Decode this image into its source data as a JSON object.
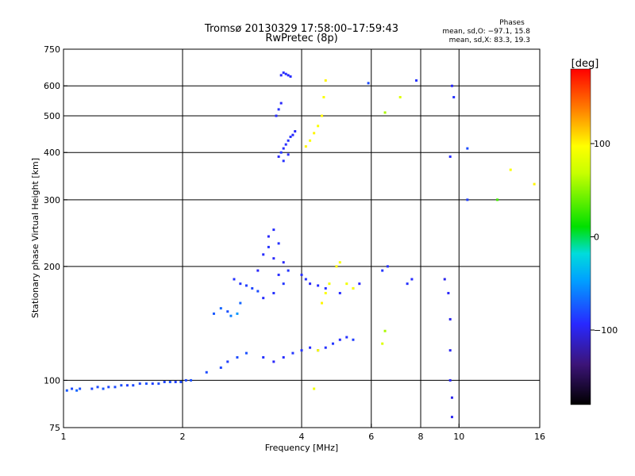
{
  "chart_data": {
    "type": "scatter",
    "title": "Tromsø 20130329 17:58:00–17:59:43",
    "subtitle": "RwPretec (8p)",
    "stats": {
      "heading": "Phases",
      "line1": "mean, sd,O: −97.1, 15.8",
      "line2": "mean, sd,X:  83.3, 19.3"
    },
    "xlabel": "Frequency [MHz]",
    "ylabel": "Stationary phase Virtual Height [km]",
    "x_scale": "log",
    "y_scale": "log",
    "xlim": [
      1,
      16
    ],
    "ylim": [
      75,
      750
    ],
    "x_ticks": [
      {
        "value": 1,
        "label": "1"
      },
      {
        "value": 2,
        "label": "2"
      },
      {
        "value": 4,
        "label": "4"
      },
      {
        "value": 6,
        "label": "6"
      },
      {
        "value": 8,
        "label": "8"
      },
      {
        "value": 10,
        "label": "10"
      },
      {
        "value": 16,
        "label": "16"
      }
    ],
    "y_ticks": [
      {
        "value": 75,
        "label": "75"
      },
      {
        "value": 100,
        "label": "100"
      },
      {
        "value": 200,
        "label": "200"
      },
      {
        "value": 300,
        "label": "300"
      },
      {
        "value": 400,
        "label": "400"
      },
      {
        "value": 500,
        "label": "500"
      },
      {
        "value": 600,
        "label": "600"
      },
      {
        "value": 750,
        "label": "750"
      }
    ],
    "grid_x": [
      2,
      4,
      6,
      8,
      10
    ],
    "grid_y": [
      100,
      200,
      300,
      400,
      500,
      600
    ],
    "colorbar": {
      "label": "[deg]",
      "range": [
        -180,
        180
      ],
      "ticks": [
        {
          "value": 100,
          "label": "100"
        },
        {
          "value": 0,
          "label": "0"
        },
        {
          "value": -100,
          "label": "−100"
        }
      ]
    },
    "series": [
      {
        "points": [
          [
            1.02,
            94,
            -75
          ],
          [
            1.05,
            95,
            -80
          ],
          [
            1.08,
            94,
            -70
          ],
          [
            1.1,
            95,
            -78
          ],
          [
            1.18,
            95,
            -82
          ],
          [
            1.22,
            96,
            -80
          ],
          [
            1.26,
            95,
            -76
          ],
          [
            1.3,
            96,
            -82
          ],
          [
            1.35,
            96,
            -80
          ],
          [
            1.4,
            97,
            -78
          ],
          [
            1.45,
            97,
            -85
          ],
          [
            1.5,
            97,
            -80
          ],
          [
            1.56,
            98,
            -82
          ],
          [
            1.62,
            98,
            -78
          ],
          [
            1.68,
            98,
            -84
          ],
          [
            1.74,
            98,
            -80
          ],
          [
            1.8,
            99,
            -82
          ],
          [
            1.86,
            99,
            -78
          ],
          [
            1.92,
            99,
            -85
          ],
          [
            1.98,
            99,
            -80
          ],
          [
            2.04,
            100,
            -82
          ],
          [
            2.1,
            100,
            -78
          ],
          [
            2.3,
            105,
            -80
          ],
          [
            2.5,
            108,
            -82
          ],
          [
            2.6,
            112,
            -85
          ],
          [
            2.75,
            115,
            -80
          ],
          [
            2.9,
            118,
            -78
          ],
          [
            2.4,
            150,
            -75
          ],
          [
            2.5,
            155,
            -70
          ],
          [
            2.6,
            152,
            -78
          ],
          [
            2.65,
            148,
            -60
          ],
          [
            2.75,
            150,
            -50
          ],
          [
            2.8,
            160,
            -70
          ],
          [
            2.7,
            185,
            -90
          ],
          [
            2.8,
            180,
            -88
          ],
          [
            2.9,
            178,
            -85
          ],
          [
            3.0,
            175,
            -82
          ],
          [
            3.1,
            172,
            -80
          ],
          [
            3.1,
            195,
            -95
          ],
          [
            3.2,
            215,
            -92
          ],
          [
            3.3,
            225,
            -90
          ],
          [
            3.4,
            210,
            -95
          ],
          [
            3.5,
            190,
            -92
          ],
          [
            3.6,
            180,
            -88
          ],
          [
            3.3,
            240,
            -95
          ],
          [
            3.4,
            250,
            -92
          ],
          [
            3.5,
            230,
            -90
          ],
          [
            3.6,
            205,
            -95
          ],
          [
            3.7,
            195,
            -88
          ],
          [
            3.4,
            170,
            -90
          ],
          [
            3.2,
            165,
            -92
          ],
          [
            3.2,
            115,
            -90
          ],
          [
            3.4,
            112,
            -95
          ],
          [
            3.6,
            115,
            -92
          ],
          [
            3.8,
            118,
            -88
          ],
          [
            4.0,
            120,
            -90
          ],
          [
            4.2,
            122,
            -92
          ],
          [
            4.4,
            120,
            -95
          ],
          [
            4.6,
            122,
            -90
          ],
          [
            4.8,
            125,
            -88
          ],
          [
            5.0,
            128,
            -92
          ],
          [
            5.2,
            130,
            -90
          ],
          [
            5.4,
            128,
            -85
          ],
          [
            3.5,
            390,
            -95
          ],
          [
            3.6,
            410,
            -92
          ],
          [
            3.7,
            430,
            -90
          ],
          [
            3.8,
            445,
            -95
          ],
          [
            3.55,
            400,
            -88
          ],
          [
            3.65,
            420,
            -92
          ],
          [
            3.75,
            440,
            -90
          ],
          [
            3.85,
            455,
            -95
          ],
          [
            3.6,
            380,
            -90
          ],
          [
            3.7,
            395,
            -92
          ],
          [
            3.45,
            500,
            -92
          ],
          [
            3.5,
            520,
            -90
          ],
          [
            3.55,
            540,
            -95
          ],
          [
            3.55,
            640,
            -95
          ],
          [
            3.6,
            650,
            -92
          ],
          [
            3.65,
            645,
            -90
          ],
          [
            3.7,
            640,
            -95
          ],
          [
            3.75,
            635,
            -92
          ],
          [
            4.0,
            190,
            -92
          ],
          [
            4.1,
            185,
            -90
          ],
          [
            4.2,
            180,
            -95
          ],
          [
            4.4,
            178,
            -92
          ],
          [
            4.6,
            175,
            -90
          ],
          [
            5.0,
            170,
            -92
          ],
          [
            5.4,
            175,
            -90
          ],
          [
            5.6,
            180,
            -95
          ],
          [
            4.3,
            95,
            90
          ],
          [
            4.4,
            120,
            95
          ],
          [
            4.5,
            160,
            100
          ],
          [
            4.6,
            170,
            95
          ],
          [
            4.7,
            180,
            90
          ],
          [
            4.9,
            200,
            100
          ],
          [
            5.0,
            205,
            95
          ],
          [
            5.2,
            180,
            90
          ],
          [
            5.4,
            175,
            95
          ],
          [
            4.1,
            415,
            100
          ],
          [
            4.2,
            430,
            95
          ],
          [
            4.3,
            450,
            100
          ],
          [
            4.4,
            470,
            95
          ],
          [
            4.5,
            500,
            100
          ],
          [
            4.55,
            560,
            95
          ],
          [
            4.6,
            620,
            100
          ],
          [
            6.6,
            200,
            -90
          ],
          [
            6.4,
            195,
            -88
          ],
          [
            7.4,
            180,
            -90
          ],
          [
            7.6,
            185,
            -92
          ],
          [
            6.5,
            135,
            60
          ],
          [
            6.4,
            125,
            80
          ],
          [
            9.2,
            185,
            -100
          ],
          [
            9.4,
            170,
            -95
          ],
          [
            9.5,
            145,
            -100
          ],
          [
            9.5,
            120,
            -98
          ],
          [
            9.5,
            100,
            -95
          ],
          [
            9.6,
            90,
            -100
          ],
          [
            9.6,
            80,
            -98
          ],
          [
            9.5,
            390,
            -92
          ],
          [
            9.7,
            560,
            -90
          ],
          [
            9.6,
            600,
            -95
          ],
          [
            10.5,
            300,
            -85
          ],
          [
            10.5,
            410,
            -80
          ],
          [
            12.5,
            300,
            30
          ],
          [
            13.5,
            360,
            95
          ],
          [
            15.5,
            330,
            100
          ],
          [
            5.9,
            610,
            -80
          ],
          [
            7.8,
            620,
            -90
          ],
          [
            6.5,
            510,
            60
          ],
          [
            7.1,
            560,
            80
          ]
        ]
      }
    ]
  }
}
